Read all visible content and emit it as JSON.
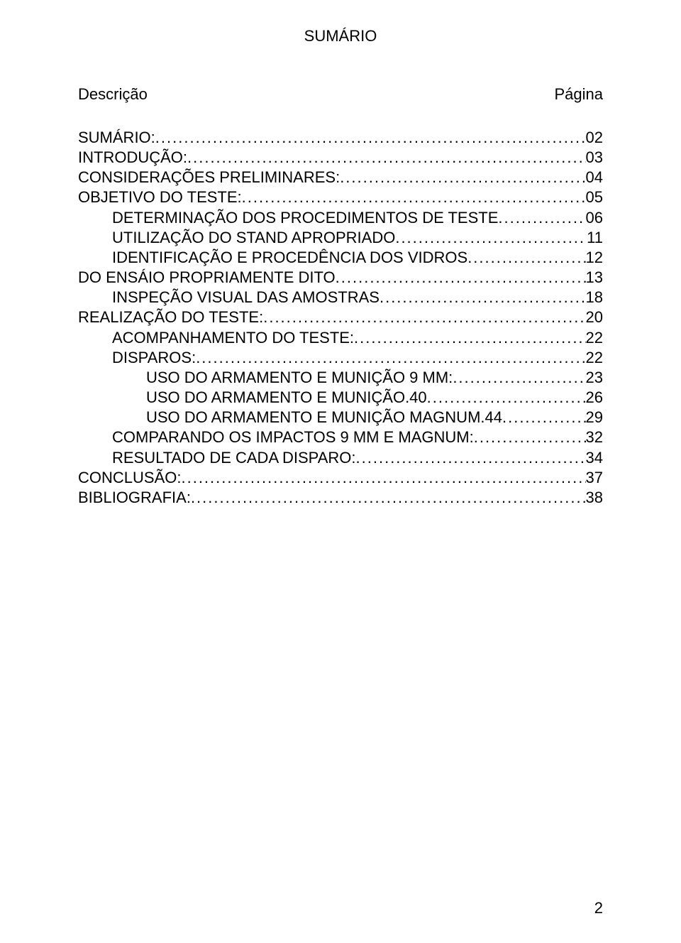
{
  "title": "SUMÁRIO",
  "header": {
    "left": "Descrição",
    "right": "Página"
  },
  "toc": [
    {
      "label": "SUMÁRIO:",
      "page": "02",
      "indent": 0
    },
    {
      "label": "INTRODUÇÃO:",
      "page": "03",
      "indent": 0
    },
    {
      "label": "CONSIDERAÇÕES PRELIMINARES:",
      "page": "04",
      "indent": 0
    },
    {
      "label": "OBJETIVO DO TESTE:",
      "page": "05",
      "indent": 0
    },
    {
      "label": "DETERMINAÇÃO DOS PROCEDIMENTOS DE TESTE",
      "page": "06",
      "indent": 1
    },
    {
      "label": "UTILIZAÇÃO DO STAND APROPRIADO",
      "page": "11",
      "indent": 1
    },
    {
      "label": "IDENTIFICAÇÃO E PROCEDÊNCIA DOS VIDROS",
      "page": "12",
      "indent": 1
    },
    {
      "label": "DO ENSÁIO PROPRIAMENTE DITO",
      "page": "13",
      "indent": 0
    },
    {
      "label": "INSPEÇÃO VISUAL DAS AMOSTRAS",
      "page": "18",
      "indent": 1
    },
    {
      "label": "REALIZAÇÃO DO TESTE:",
      "page": "20",
      "indent": 0
    },
    {
      "label": "ACOMPANHAMENTO DO TESTE:",
      "page": "22",
      "indent": 1
    },
    {
      "label": "DISPAROS:",
      "page": "22",
      "indent": 1
    },
    {
      "label": "USO DO ARMAMENTO E MUNIÇÃO 9 MM:",
      "page": "23",
      "indent": 2
    },
    {
      "label": "USO DO ARMAMENTO E MUNIÇÃO.40",
      "page": "26",
      "indent": 2
    },
    {
      "label": "USO DO ARMAMENTO E MUNIÇÃO MAGNUM.44",
      "page": "29",
      "indent": 2
    },
    {
      "label": "COMPARANDO OS IMPACTOS 9 MM E MAGNUM:",
      "page": "32",
      "indent": 1
    },
    {
      "label": "RESULTADO DE CADA DISPARO:",
      "page": "34",
      "indent": 1
    },
    {
      "label": "CONCLUSÃO:",
      "page": "37",
      "indent": 0
    },
    {
      "label": "BIBLIOGRAFIA:",
      "page": "38",
      "indent": 0
    }
  ],
  "page_number": "2",
  "colors": {
    "text": "#000000",
    "background": "#ffffff"
  },
  "typography": {
    "base_fontsize_pt": 16,
    "font_family": "Arial"
  }
}
